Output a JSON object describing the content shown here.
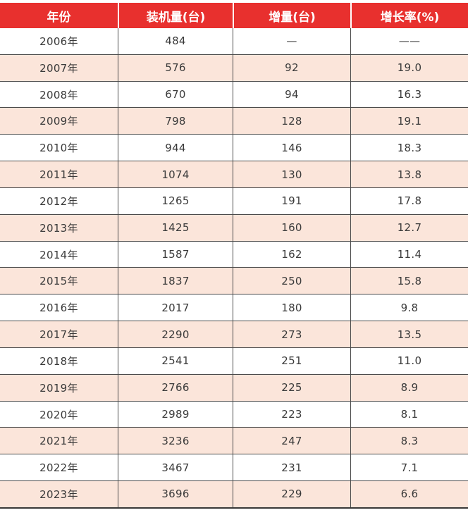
{
  "colors": {
    "header_bg": "#E8302E",
    "header_text": "#ffffff",
    "row_alt_bg": "#FBE5DA",
    "line": "#4a4a4a",
    "text": "#3a3a3a"
  },
  "table": {
    "columns": [
      "年份",
      "装机量(台)",
      "增量(台)",
      "增长率(%)"
    ],
    "rows": [
      {
        "year": "2006年",
        "installed": "484",
        "increment": "—",
        "growth": "——"
      },
      {
        "year": "2007年",
        "installed": "576",
        "increment": "92",
        "growth": "19.0"
      },
      {
        "year": "2008年",
        "installed": "670",
        "increment": "94",
        "growth": "16.3"
      },
      {
        "year": "2009年",
        "installed": "798",
        "increment": "128",
        "growth": "19.1"
      },
      {
        "year": "2010年",
        "installed": "944",
        "increment": "146",
        "growth": "18.3"
      },
      {
        "year": "2011年",
        "installed": "1074",
        "increment": "130",
        "growth": "13.8"
      },
      {
        "year": "2012年",
        "installed": "1265",
        "increment": "191",
        "growth": "17.8"
      },
      {
        "year": "2013年",
        "installed": "1425",
        "increment": "160",
        "growth": "12.7"
      },
      {
        "year": "2014年",
        "installed": "1587",
        "increment": "162",
        "growth": "11.4"
      },
      {
        "year": "2015年",
        "installed": "1837",
        "increment": "250",
        "growth": "15.8"
      },
      {
        "year": "2016年",
        "installed": "2017",
        "increment": "180",
        "growth": "9.8"
      },
      {
        "year": "2017年",
        "installed": "2290",
        "increment": "273",
        "growth": "13.5"
      },
      {
        "year": "2018年",
        "installed": "2541",
        "increment": "251",
        "growth": "11.0"
      },
      {
        "year": "2019年",
        "installed": "2766",
        "increment": "225",
        "growth": "8.9"
      },
      {
        "year": "2020年",
        "installed": "2989",
        "increment": "223",
        "growth": "8.1"
      },
      {
        "year": "2021年",
        "installed": "3236",
        "increment": "247",
        "growth": "8.3"
      },
      {
        "year": "2022年",
        "installed": "3467",
        "increment": "231",
        "growth": "7.1"
      },
      {
        "year": "2023年",
        "installed": "3696",
        "increment": "229",
        "growth": "6.6"
      }
    ]
  },
  "chart_data": {
    "type": "table",
    "title": "",
    "columns": [
      "年份",
      "装机量(台)",
      "增量(台)",
      "增长率(%)"
    ],
    "categories": [
      "2006年",
      "2007年",
      "2008年",
      "2009年",
      "2010年",
      "2011年",
      "2012年",
      "2013年",
      "2014年",
      "2015年",
      "2016年",
      "2017年",
      "2018年",
      "2019年",
      "2020年",
      "2021年",
      "2022年",
      "2023年"
    ],
    "series": [
      {
        "name": "装机量(台)",
        "values": [
          484,
          576,
          670,
          798,
          944,
          1074,
          1265,
          1425,
          1587,
          1837,
          2017,
          2290,
          2541,
          2766,
          2989,
          3236,
          3467,
          3696
        ]
      },
      {
        "name": "增量(台)",
        "values": [
          null,
          92,
          94,
          128,
          146,
          130,
          191,
          160,
          162,
          250,
          180,
          273,
          251,
          225,
          223,
          247,
          231,
          229
        ]
      },
      {
        "name": "增长率(%)",
        "values": [
          null,
          19.0,
          16.3,
          19.1,
          18.3,
          13.8,
          17.8,
          12.7,
          11.4,
          15.8,
          9.8,
          13.5,
          11.0,
          8.9,
          8.1,
          8.3,
          7.1,
          6.6
        ]
      }
    ],
    "layout": {
      "header_style": "red-banner",
      "zebra_striping": true,
      "grid": "horizontal-and-vertical-rules"
    }
  }
}
